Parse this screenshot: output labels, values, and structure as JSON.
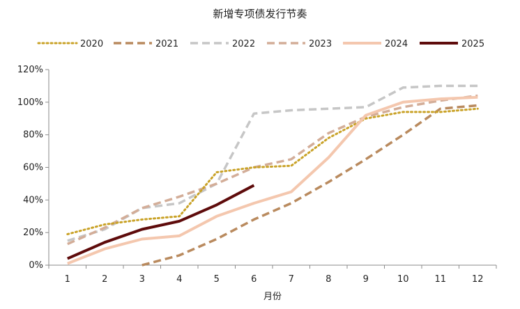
{
  "chart_data": {
    "type": "line",
    "title": "新增专项债发行节奏",
    "xlabel": "月份",
    "ylabel": "",
    "categories": [
      "1",
      "2",
      "3",
      "4",
      "5",
      "6",
      "7",
      "8",
      "9",
      "10",
      "11",
      "12"
    ],
    "y_ticks": [
      "0%",
      "20%",
      "40%",
      "60%",
      "80%",
      "100%",
      "120%"
    ],
    "ylim": [
      0,
      1.2
    ],
    "grid": false,
    "legend_position": "top",
    "series": [
      {
        "name": "2020",
        "color": "#C9A227",
        "style": "dotted",
        "values": [
          0.19,
          0.25,
          0.28,
          0.3,
          0.57,
          0.6,
          0.61,
          0.78,
          0.9,
          0.94,
          0.94,
          0.96
        ]
      },
      {
        "name": "2021",
        "color": "#B98A5E",
        "style": "dashed",
        "values": [
          null,
          null,
          0.0,
          0.06,
          0.16,
          0.28,
          0.38,
          0.51,
          0.65,
          0.8,
          0.96,
          0.98
        ]
      },
      {
        "name": "2022",
        "color": "#C6C6C6",
        "style": "dashed",
        "values": [
          0.15,
          0.22,
          0.35,
          0.38,
          0.5,
          0.93,
          0.95,
          0.96,
          0.97,
          1.09,
          1.1,
          1.1
        ]
      },
      {
        "name": "2023",
        "color": "#D3AD98",
        "style": "dashed",
        "values": [
          0.13,
          0.23,
          0.35,
          0.42,
          0.5,
          0.6,
          0.65,
          0.81,
          0.91,
          0.97,
          1.01,
          1.04
        ]
      },
      {
        "name": "2024",
        "color": "#F4C7AE",
        "style": "solid",
        "values": [
          0.01,
          0.1,
          0.16,
          0.18,
          0.3,
          0.38,
          0.45,
          0.66,
          0.92,
          1.0,
          1.02,
          1.03
        ]
      },
      {
        "name": "2025",
        "color": "#5E0B0B",
        "style": "solid",
        "values": [
          0.04,
          0.14,
          0.22,
          0.27,
          0.37,
          0.49,
          null,
          null,
          null,
          null,
          null,
          null
        ]
      }
    ]
  }
}
